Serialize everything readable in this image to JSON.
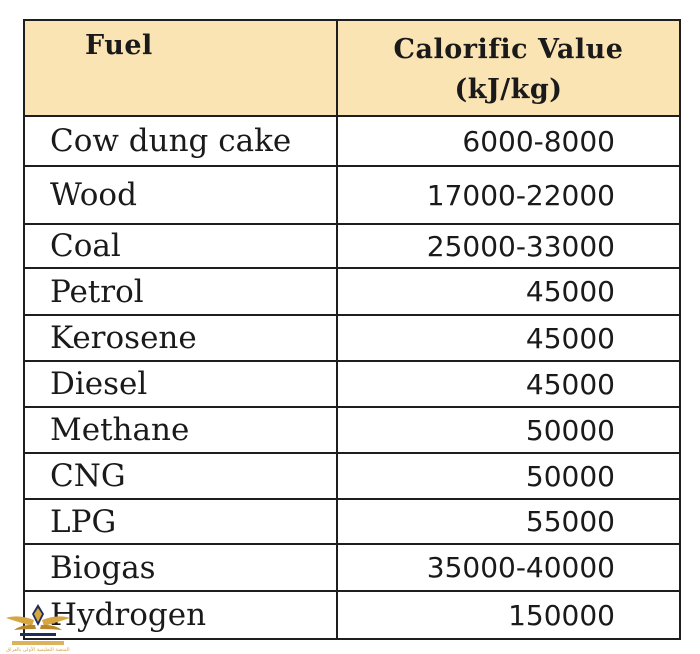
{
  "table": {
    "headers": {
      "fuel": "Fuel",
      "value_line1": "Calorific Value",
      "value_line2": "(kJ/kg)"
    },
    "rows": [
      {
        "fuel": "Cow dung cake",
        "value": "6000-8000"
      },
      {
        "fuel": "Wood",
        "value": "17000-22000"
      },
      {
        "fuel": "Coal",
        "value": "25000-33000"
      },
      {
        "fuel": "Petrol",
        "value": "45000"
      },
      {
        "fuel": "Kerosene",
        "value": "45000"
      },
      {
        "fuel": "Diesel",
        "value": "45000"
      },
      {
        "fuel": "Methane",
        "value": "50000"
      },
      {
        "fuel": "CNG",
        "value": "50000"
      },
      {
        "fuel": "LPG",
        "value": "55000"
      },
      {
        "fuel": "Biogas",
        "value": "35000-40000"
      },
      {
        "fuel": "Hydrogen",
        "value": "150000"
      }
    ]
  },
  "colors": {
    "header_bg": "#fbe4b4",
    "border": "#1e1e1e",
    "text": "#1a1a1a",
    "logo_gold": "#d6a640",
    "logo_navy": "#1f2d5c"
  },
  "watermark": {
    "icon": "winged-emblem-icon",
    "text": "المنصة التعليمية الأولى بالعراق"
  }
}
